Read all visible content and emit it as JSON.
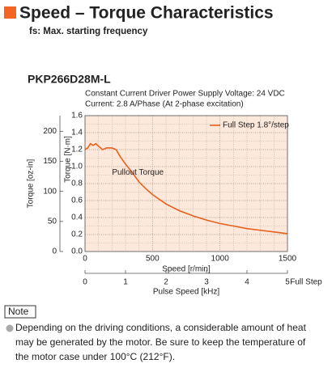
{
  "header": {
    "title": "Speed – Torque Characteristics",
    "subtitle": "fs: Max. starting frequency"
  },
  "chart_data": {
    "type": "line",
    "title": "PKP266D28M-L",
    "subtitle_lines": [
      "Constant Current Driver    Power Supply Voltage: 24 VDC",
      "Current: 2.8 A/Phase (At 2-phase excitation)"
    ],
    "x": [
      0,
      20,
      40,
      60,
      80,
      100,
      130,
      160,
      200,
      230,
      260,
      300,
      350,
      400,
      450,
      500,
      600,
      700,
      800,
      900,
      1000,
      1100,
      1200,
      1300,
      1400,
      1500
    ],
    "series": [
      {
        "name": "Full Step 1.8°/step",
        "color": "#e8601c",
        "values": [
          1.2,
          1.22,
          1.27,
          1.25,
          1.27,
          1.24,
          1.2,
          1.22,
          1.22,
          1.2,
          1.12,
          1.03,
          0.93,
          0.82,
          0.74,
          0.67,
          0.56,
          0.48,
          0.42,
          0.37,
          0.33,
          0.3,
          0.27,
          0.25,
          0.23,
          0.21
        ]
      }
    ],
    "annotation": "Pullout Torque",
    "xlabel": "Speed [r/min]",
    "xlim": [
      0,
      1500
    ],
    "xticks": [
      0,
      500,
      1000,
      1500
    ],
    "ylabel": "Torque [N·m]",
    "ylim": [
      0,
      1.6
    ],
    "yticks": [
      0,
      0.2,
      0.4,
      0.6,
      0.8,
      1.0,
      1.2,
      1.4,
      1.6
    ],
    "y2label": "Torque [oz-in]",
    "y2lim": [
      0,
      226
    ],
    "y2ticks": [
      0,
      50,
      100,
      150,
      200
    ],
    "x2label": "Pulse Speed [kHz]",
    "x2lim": [
      0,
      5
    ],
    "x2ticks": [
      0,
      1,
      2,
      3,
      4,
      5
    ],
    "x2note": "Full Step",
    "grid": true,
    "legend": "top-right",
    "background": "#fde9dc"
  },
  "note": {
    "label": "Note",
    "lines": [
      "Depending on the driving conditions, a considerable amount of heat",
      "may be generated by the motor. Be sure to keep the temperature of",
      "the motor case under 100°C (212°F)."
    ]
  }
}
